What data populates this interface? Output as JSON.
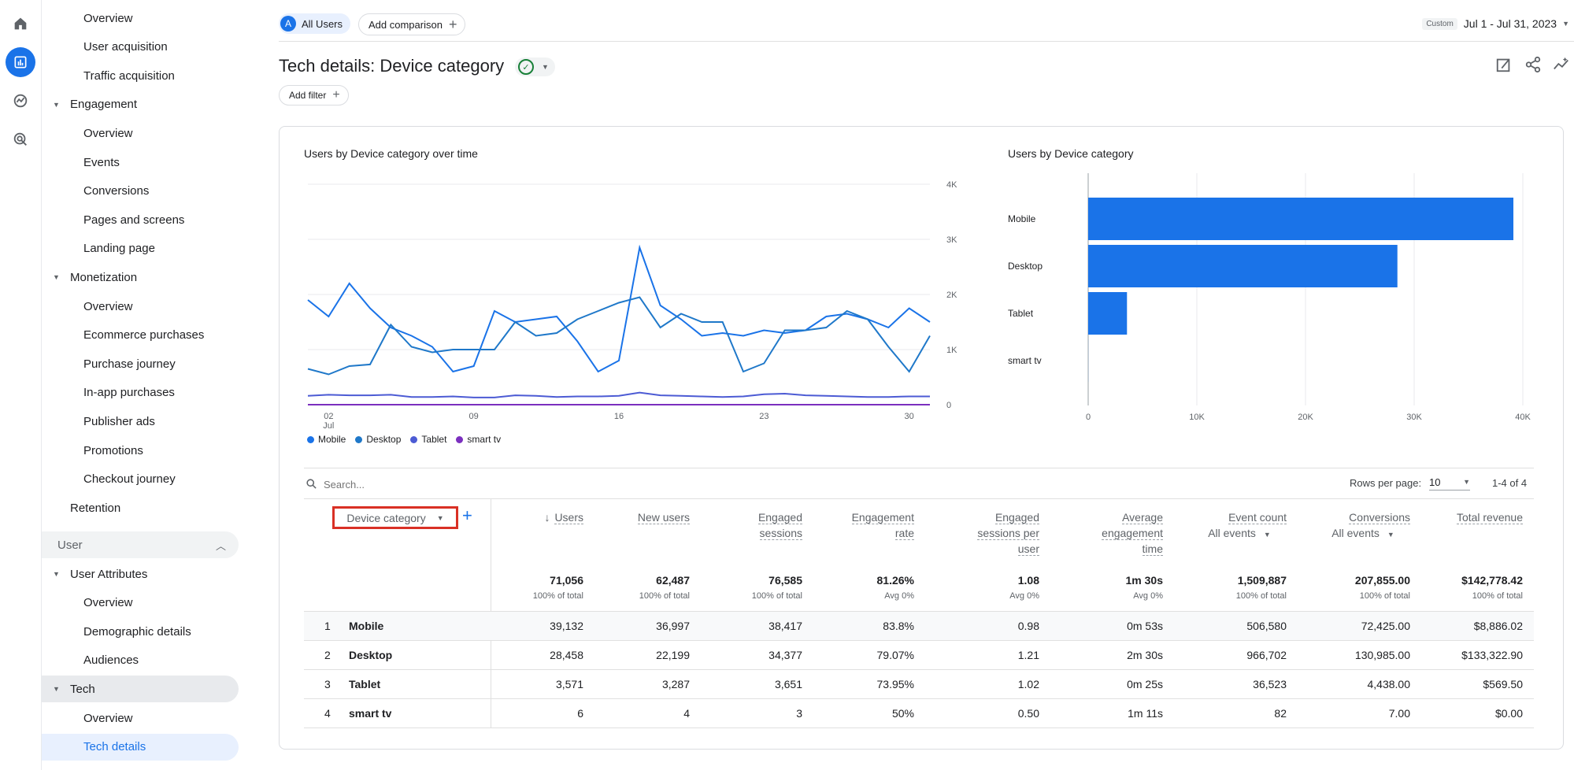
{
  "colors": {
    "accent": "#1a73e8",
    "mobile": "#1a73e8",
    "desktop": "#1f78c9",
    "tablet": "#4c5bd4",
    "smarttv": "#7b2fbf",
    "highlight": "#e8f0fe",
    "box": "#d93025"
  },
  "rail": {
    "icons": [
      "home-icon",
      "reports-icon",
      "explore-icon",
      "advertising-icon"
    ]
  },
  "nav": {
    "items": [
      {
        "label": "Overview",
        "level": "sub"
      },
      {
        "label": "User acquisition",
        "level": "sub"
      },
      {
        "label": "Traffic acquisition",
        "level": "sub"
      },
      {
        "label": "Engagement",
        "level": "top"
      },
      {
        "label": "Overview",
        "level": "sub"
      },
      {
        "label": "Events",
        "level": "sub"
      },
      {
        "label": "Conversions",
        "level": "sub"
      },
      {
        "label": "Pages and screens",
        "level": "sub"
      },
      {
        "label": "Landing page",
        "level": "sub"
      },
      {
        "label": "Monetization",
        "level": "top"
      },
      {
        "label": "Overview",
        "level": "sub"
      },
      {
        "label": "Ecommerce purchases",
        "level": "sub"
      },
      {
        "label": "Purchase journey",
        "level": "sub"
      },
      {
        "label": "In-app purchases",
        "level": "sub"
      },
      {
        "label": "Publisher ads",
        "level": "sub"
      },
      {
        "label": "Promotions",
        "level": "sub"
      },
      {
        "label": "Checkout journey",
        "level": "sub"
      },
      {
        "label": "Retention",
        "level": "plain"
      }
    ],
    "section_user": "User",
    "items2": [
      {
        "label": "User Attributes",
        "level": "top"
      },
      {
        "label": "Overview",
        "level": "sub"
      },
      {
        "label": "Demographic details",
        "level": "sub"
      },
      {
        "label": "Audiences",
        "level": "sub"
      },
      {
        "label": "Tech",
        "level": "top"
      },
      {
        "label": "Overview",
        "level": "sub"
      },
      {
        "label": "Tech details",
        "level": "sub"
      }
    ]
  },
  "header": {
    "segment_badge": "A",
    "segment_label": "All Users",
    "add_comparison": "Add comparison",
    "date_tag": "Custom",
    "date_range": "Jul 1 - Jul 31, 2023",
    "title": "Tech details: Device category",
    "add_filter": "Add filter"
  },
  "line_chart_title": "Users by Device category over time",
  "bar_chart_title": "Users by Device category",
  "legend": [
    "Mobile",
    "Desktop",
    "Tablet",
    "smart tv"
  ],
  "chart_data": [
    {
      "type": "line",
      "title": "Users by Device category over time",
      "x_ticks": [
        "02",
        "09",
        "16",
        "23",
        "30"
      ],
      "x_tick_sub": "Jul",
      "y_ticks": [
        "4K",
        "3K",
        "2K",
        "1K",
        "0"
      ],
      "ylim": [
        0,
        4000
      ],
      "x": [
        1,
        2,
        3,
        4,
        5,
        6,
        7,
        8,
        9,
        10,
        11,
        12,
        13,
        14,
        15,
        16,
        17,
        18,
        19,
        20,
        21,
        22,
        23,
        24,
        25,
        26,
        27,
        28,
        29,
        30,
        31
      ],
      "series": [
        {
          "name": "Mobile",
          "values": [
            1900,
            1600,
            2200,
            1750,
            1400,
            1250,
            1050,
            600,
            700,
            1700,
            1500,
            1550,
            1600,
            1150,
            600,
            800,
            2850,
            1800,
            1550,
            1250,
            1300,
            1250,
            1350,
            1300,
            1350,
            1600,
            1650,
            1550,
            1400,
            1750,
            1500
          ]
        },
        {
          "name": "Desktop",
          "values": [
            650,
            550,
            700,
            730,
            1450,
            1050,
            950,
            1000,
            1000,
            1000,
            1500,
            1250,
            1300,
            1550,
            1700,
            1850,
            1950,
            1400,
            1650,
            1500,
            1500,
            600,
            750,
            1350,
            1350,
            1400,
            1700,
            1550,
            1050,
            600,
            1250
          ]
        },
        {
          "name": "Tablet",
          "values": [
            160,
            180,
            170,
            170,
            180,
            140,
            140,
            150,
            130,
            130,
            170,
            160,
            140,
            150,
            150,
            160,
            220,
            170,
            160,
            150,
            140,
            150,
            190,
            200,
            170,
            160,
            150,
            140,
            140,
            150,
            150
          ]
        },
        {
          "name": "smart tv",
          "values": [
            0,
            0,
            0,
            0,
            0,
            0,
            0,
            0,
            0,
            0,
            0,
            0,
            0,
            0,
            0,
            0,
            0,
            0,
            0,
            0,
            0,
            0,
            0,
            0,
            0,
            0,
            0,
            0,
            0,
            0,
            0
          ]
        }
      ]
    },
    {
      "type": "bar",
      "title": "Users by Device category",
      "categories": [
        "Mobile",
        "Desktop",
        "Tablet",
        "smart tv"
      ],
      "values": [
        39132,
        28458,
        3571,
        6
      ],
      "x_ticks": [
        "0",
        "10K",
        "20K",
        "30K",
        "40K"
      ],
      "xlim": [
        0,
        40000
      ]
    }
  ],
  "table": {
    "search_placeholder": "Search...",
    "rows_per_page_label": "Rows per page:",
    "rows_per_page": "10",
    "pagination": "1-4 of 4",
    "dimension_header": "Device category",
    "columns": [
      {
        "label": "Users",
        "lines": [
          "Users"
        ],
        "sort": true
      },
      {
        "label": "New users",
        "lines": [
          "New users"
        ]
      },
      {
        "label": "Engaged sessions",
        "lines": [
          "Engaged",
          "sessions"
        ]
      },
      {
        "label": "Engagement rate",
        "lines": [
          "Engagement",
          "rate"
        ]
      },
      {
        "label": "Engaged sessions per user",
        "lines": [
          "Engaged",
          "sessions per",
          "user"
        ]
      },
      {
        "label": "Average engagement time",
        "lines": [
          "Average",
          "engagement",
          "time"
        ]
      },
      {
        "label": "Event count",
        "lines": [
          "Event count"
        ],
        "select": "All events"
      },
      {
        "label": "Conversions",
        "lines": [
          "Conversions"
        ],
        "select": "All events"
      },
      {
        "label": "Total revenue",
        "lines": [
          "Total revenue"
        ]
      }
    ],
    "totals": [
      {
        "value": "71,056",
        "sub": "100% of total"
      },
      {
        "value": "62,487",
        "sub": "100% of total"
      },
      {
        "value": "76,585",
        "sub": "100% of total"
      },
      {
        "value": "81.26%",
        "sub": "Avg 0%"
      },
      {
        "value": "1.08",
        "sub": "Avg 0%"
      },
      {
        "value": "1m 30s",
        "sub": "Avg 0%"
      },
      {
        "value": "1,509,887",
        "sub": "100% of total"
      },
      {
        "value": "207,855.00",
        "sub": "100% of total"
      },
      {
        "value": "$142,778.42",
        "sub": "100% of total"
      }
    ],
    "rows": [
      {
        "idx": "1",
        "name": "Mobile",
        "cells": [
          "39,132",
          "36,997",
          "38,417",
          "83.8%",
          "0.98",
          "0m 53s",
          "506,580",
          "72,425.00",
          "$8,886.02"
        ]
      },
      {
        "idx": "2",
        "name": "Desktop",
        "cells": [
          "28,458",
          "22,199",
          "34,377",
          "79.07%",
          "1.21",
          "2m 30s",
          "966,702",
          "130,985.00",
          "$133,322.90"
        ]
      },
      {
        "idx": "3",
        "name": "Tablet",
        "cells": [
          "3,571",
          "3,287",
          "3,651",
          "73.95%",
          "1.02",
          "0m 25s",
          "36,523",
          "4,438.00",
          "$569.50"
        ]
      },
      {
        "idx": "4",
        "name": "smart tv",
        "cells": [
          "6",
          "4",
          "3",
          "50%",
          "0.50",
          "1m 11s",
          "82",
          "7.00",
          "$0.00"
        ]
      }
    ]
  }
}
